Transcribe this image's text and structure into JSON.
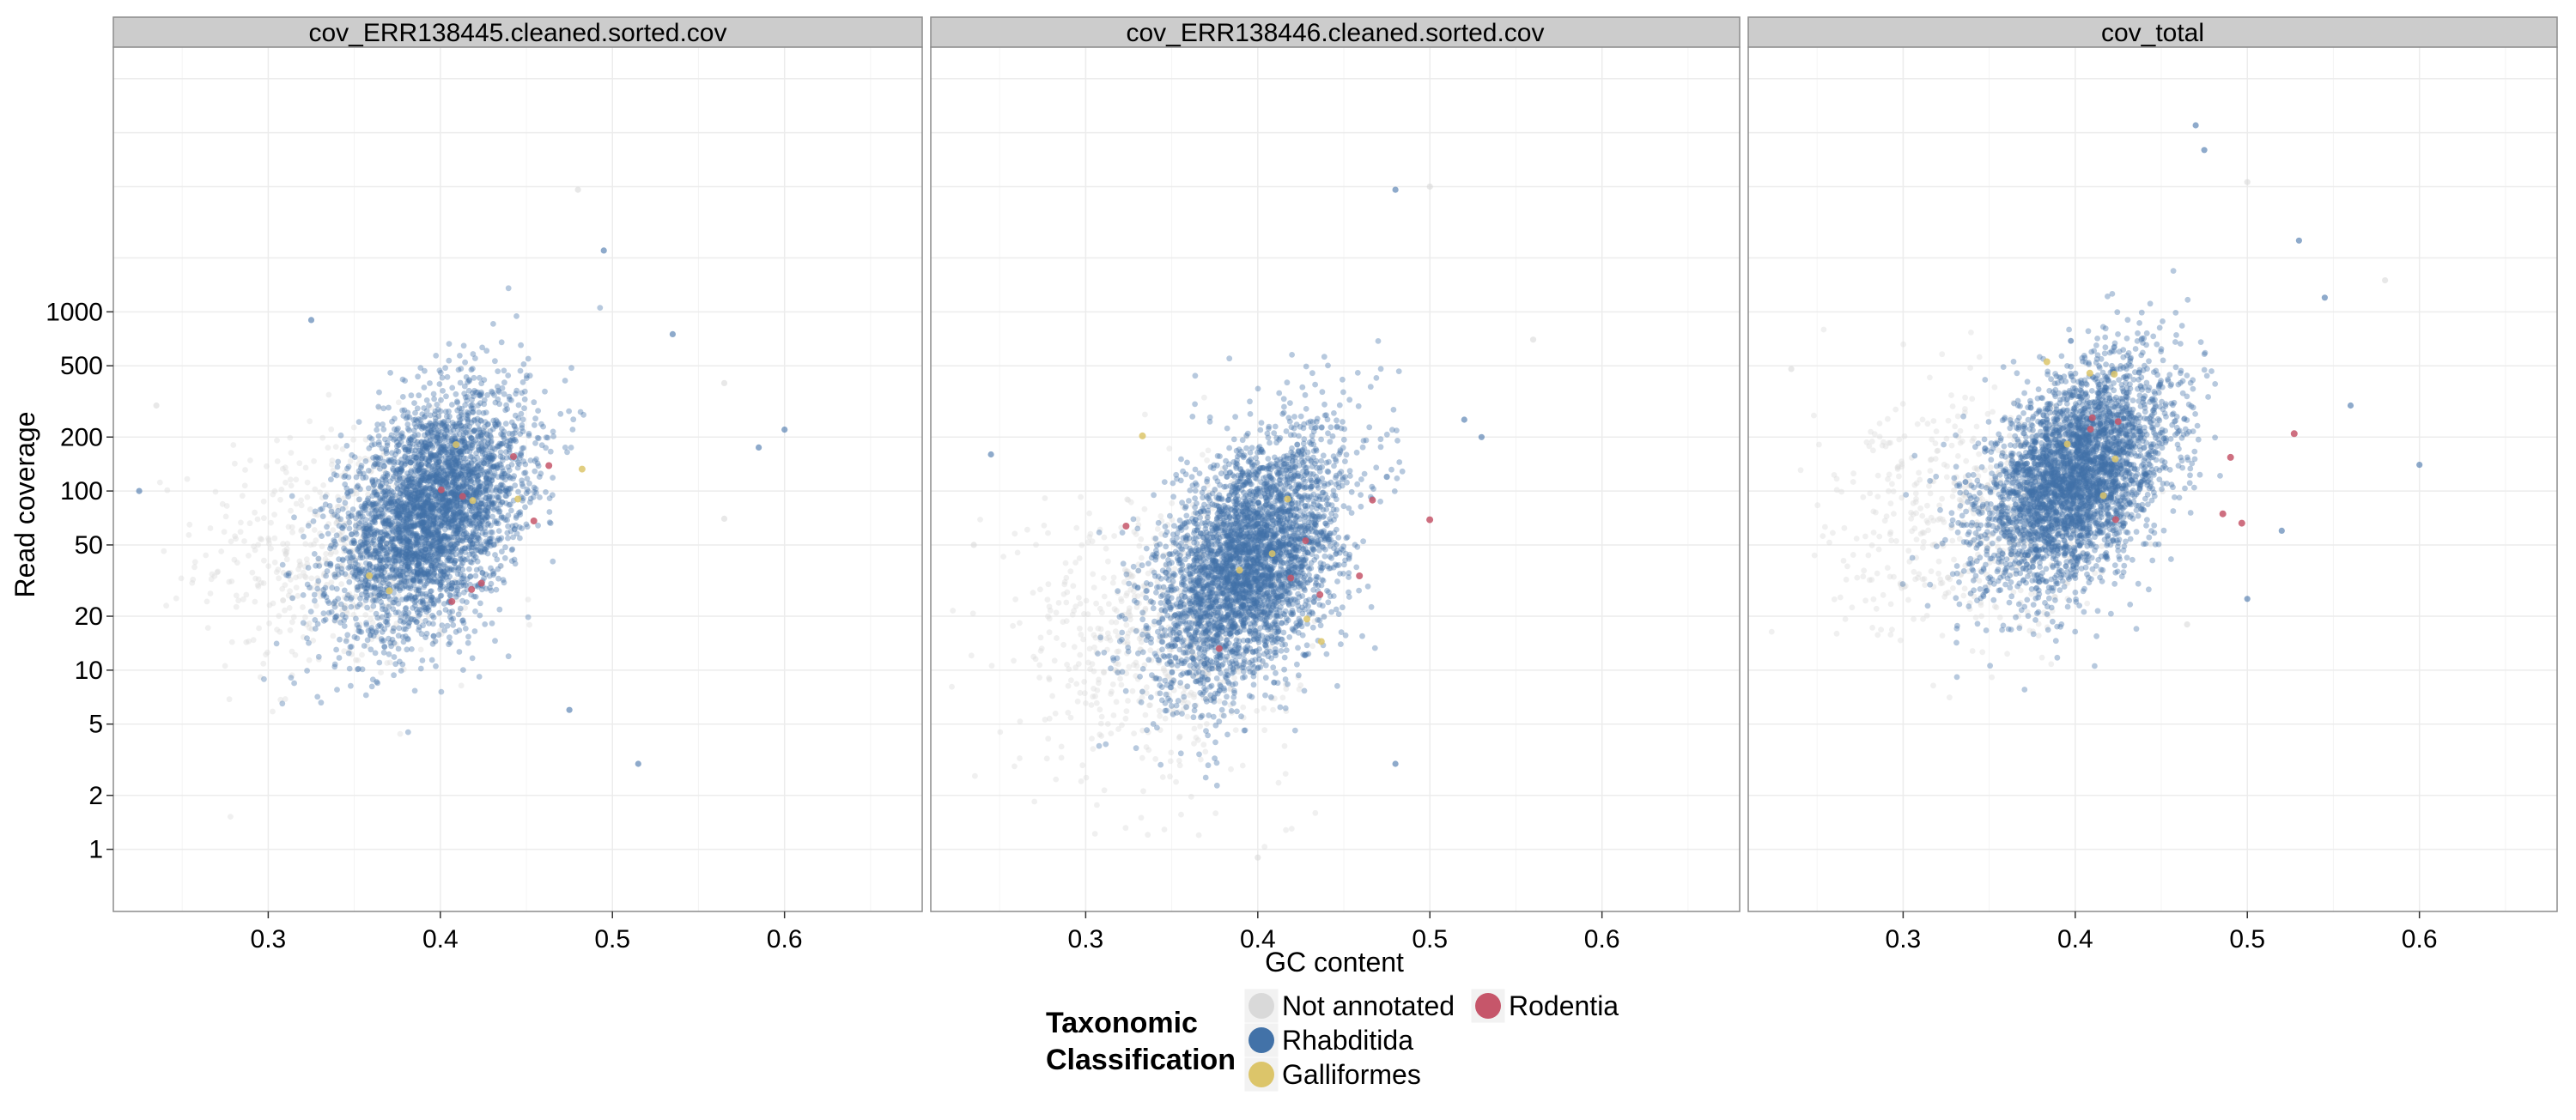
{
  "chart_data": {
    "type": "scatter",
    "xlabel": "GC content",
    "ylabel": "Read coverage",
    "x_ticks": [
      0.3,
      0.4,
      0.5,
      0.6
    ],
    "x_tick_labels": [
      "0.3",
      "0.4",
      "0.5",
      "0.6"
    ],
    "xlim": [
      0.21,
      0.68
    ],
    "y_scale": "log",
    "y_ticks": [
      1,
      2,
      5,
      10,
      20,
      50,
      100,
      200,
      500,
      1000
    ],
    "y_tick_labels": [
      "1",
      "2",
      "5",
      "10",
      "20",
      "50",
      "100",
      "200",
      "500",
      "1000"
    ],
    "ylim": [
      0.45,
      30000
    ],
    "grid": true,
    "legend_position": "bottom",
    "legend": {
      "title_line1": "Taxonomic",
      "title_line2": "Classification",
      "entries": [
        {
          "label": "Not annotated",
          "color": "#d9d9d9"
        },
        {
          "label": "Rhabditida",
          "color": "#4272a8"
        },
        {
          "label": "Galliformes",
          "color": "#dcc56a"
        },
        {
          "label": "Rodentia",
          "color": "#c6566a"
        }
      ]
    },
    "panels": [
      {
        "title": "cov_ERR138445.cleaned.sorted.cov",
        "series": [
          {
            "name": "Not annotated",
            "cluster": {
              "n": 500,
              "x_mean": 0.34,
              "x_sd": 0.04,
              "log10y_mean": 1.65,
              "log10y_sd": 0.35
            }
          },
          {
            "name": "Rhabditida",
            "cluster": {
              "n": 3600,
              "x_mean": 0.395,
              "x_sd": 0.027,
              "log10y_mean": 1.88,
              "log10y_sd": 0.3,
              "slope": 5.0
            }
          },
          {
            "name": "Galliformes",
            "cluster": {
              "n": 6,
              "x_mean": 0.41,
              "x_sd": 0.03,
              "log10y_mean": 2.0,
              "log10y_sd": 0.25
            }
          },
          {
            "name": "Rodentia",
            "cluster": {
              "n": 8,
              "x_mean": 0.45,
              "x_sd": 0.04,
              "log10y_mean": 1.8,
              "log10y_sd": 0.3
            }
          }
        ],
        "outliers": [
          [
            0.235,
            300
          ],
          [
            0.225,
            100
          ],
          [
            0.325,
            900
          ],
          [
            0.48,
            4800
          ],
          [
            0.495,
            2200
          ],
          [
            0.535,
            750
          ],
          [
            0.565,
            400
          ],
          [
            0.6,
            220
          ],
          [
            0.585,
            175
          ],
          [
            0.565,
            70
          ],
          [
            0.475,
            6
          ],
          [
            0.515,
            3
          ]
        ]
      },
      {
        "title": "cov_ERR138446.cleaned.sorted.cov",
        "series": [
          {
            "name": "Not annotated",
            "cluster": {
              "n": 600,
              "x_mean": 0.34,
              "x_sd": 0.04,
              "log10y_mean": 1.2,
              "log10y_sd": 0.4
            }
          },
          {
            "name": "Rhabditida",
            "cluster": {
              "n": 3600,
              "x_mean": 0.395,
              "x_sd": 0.027,
              "log10y_mean": 1.6,
              "log10y_sd": 0.32,
              "slope": 6.0
            }
          },
          {
            "name": "Galliformes",
            "cluster": {
              "n": 6,
              "x_mean": 0.41,
              "x_sd": 0.03,
              "log10y_mean": 1.7,
              "log10y_sd": 0.25
            }
          },
          {
            "name": "Rodentia",
            "cluster": {
              "n": 8,
              "x_mean": 0.45,
              "x_sd": 0.04,
              "log10y_mean": 1.5,
              "log10y_sd": 0.3
            }
          }
        ],
        "outliers": [
          [
            0.235,
            50
          ],
          [
            0.245,
            160
          ],
          [
            0.48,
            4800
          ],
          [
            0.5,
            5000
          ],
          [
            0.475,
            120
          ],
          [
            0.52,
            250
          ],
          [
            0.56,
            700
          ],
          [
            0.53,
            200
          ],
          [
            0.48,
            3
          ],
          [
            0.4,
            0.9
          ]
        ]
      },
      {
        "title": "cov_total",
        "series": [
          {
            "name": "Not annotated",
            "cluster": {
              "n": 500,
              "x_mean": 0.34,
              "x_sd": 0.04,
              "log10y_mean": 1.85,
              "log10y_sd": 0.33
            }
          },
          {
            "name": "Rhabditida",
            "cluster": {
              "n": 3600,
              "x_mean": 0.4,
              "x_sd": 0.027,
              "log10y_mean": 2.08,
              "log10y_sd": 0.28,
              "slope": 5.0
            }
          },
          {
            "name": "Galliformes",
            "cluster": {
              "n": 6,
              "x_mean": 0.41,
              "x_sd": 0.03,
              "log10y_mean": 2.2,
              "log10y_sd": 0.25
            }
          },
          {
            "name": "Rodentia",
            "cluster": {
              "n": 8,
              "x_mean": 0.45,
              "x_sd": 0.04,
              "log10y_mean": 2.0,
              "log10y_sd": 0.3
            }
          }
        ],
        "outliers": [
          [
            0.235,
            480
          ],
          [
            0.47,
            11000
          ],
          [
            0.475,
            8000
          ],
          [
            0.5,
            5300
          ],
          [
            0.53,
            2500
          ],
          [
            0.545,
            1200
          ],
          [
            0.58,
            1500
          ],
          [
            0.56,
            300
          ],
          [
            0.6,
            140
          ],
          [
            0.465,
            18
          ],
          [
            0.52,
            60
          ],
          [
            0.5,
            25
          ]
        ]
      }
    ]
  }
}
